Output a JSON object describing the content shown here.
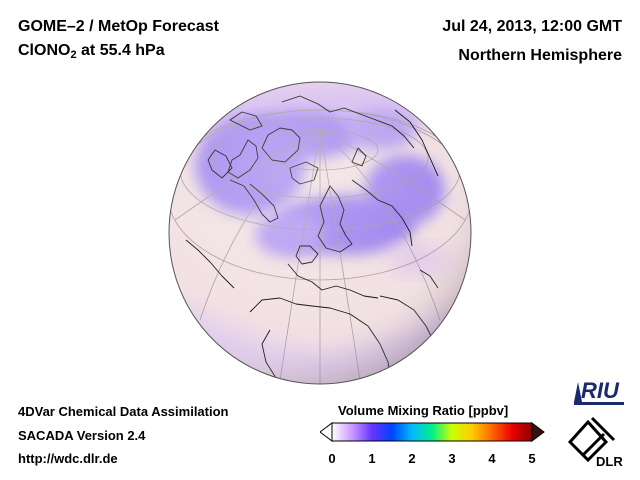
{
  "header": {
    "title_main": "GOME–2 / MetOp Forecast",
    "species_prefix": "ClONO",
    "species_subscript": "2",
    "species_suffix": " at 55.4 hPa",
    "datetime": "Jul 24, 2013, 12:00 GMT",
    "region": "Northern Hemisphere"
  },
  "footer": {
    "line1": "4DVar Chemical Data Assimilation",
    "line2": "SACADA Version 2.4",
    "line3": "http://wdc.dlr.de"
  },
  "colorbar": {
    "title": "Volume Mixing Ratio [ppbv]",
    "ticks": [
      "0",
      "1",
      "2",
      "3",
      "4",
      "5"
    ],
    "range": [
      0,
      5
    ],
    "colors": [
      "#ffffff",
      "#cc99ff",
      "#6633ff",
      "#0044ff",
      "#00bbff",
      "#00ee88",
      "#ccff00",
      "#ffcc00",
      "#ff6600",
      "#ee0000",
      "#880000"
    ]
  },
  "logos": {
    "riu_text": "RIU",
    "dlr_text": "DLR"
  },
  "map": {
    "projection": "orthographic",
    "hemisphere": "north",
    "background_color": "#f2e1e2",
    "high_value_color": "#9a80ee"
  }
}
